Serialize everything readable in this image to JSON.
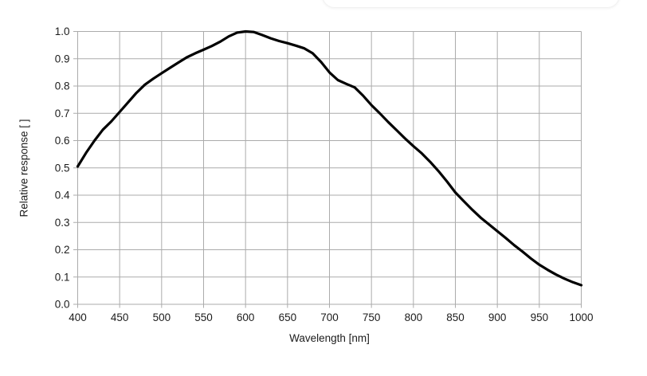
{
  "chart_data": {
    "type": "line",
    "title": "",
    "xlabel": "Wavelength [nm]",
    "ylabel": "Relative response [ ]",
    "xlim": [
      400,
      1000
    ],
    "ylim": [
      0.0,
      1.0
    ],
    "x_ticks": [
      400,
      450,
      500,
      550,
      600,
      650,
      700,
      750,
      800,
      850,
      900,
      950,
      1000
    ],
    "y_ticks": [
      0.0,
      0.1,
      0.2,
      0.3,
      0.4,
      0.5,
      0.6,
      0.7,
      0.8,
      0.9,
      1.0
    ],
    "y_tick_labels": [
      "0.0",
      "0.1",
      "0.2",
      "0.3",
      "0.4",
      "0.5",
      "0.6",
      "0.7",
      "0.8",
      "0.9",
      "1.0"
    ],
    "grid": true,
    "legend": "none",
    "colors": {
      "line": "#000000",
      "grid": "#ababab",
      "text": "#1c1c1c"
    },
    "series": [
      {
        "name": "Relative response",
        "x": [
          400,
          410,
          420,
          430,
          440,
          450,
          460,
          470,
          480,
          490,
          500,
          510,
          520,
          530,
          540,
          550,
          560,
          570,
          580,
          590,
          600,
          610,
          620,
          630,
          640,
          650,
          660,
          670,
          680,
          690,
          700,
          710,
          720,
          730,
          740,
          750,
          760,
          770,
          780,
          790,
          800,
          810,
          820,
          830,
          840,
          850,
          860,
          870,
          880,
          890,
          900,
          910,
          920,
          930,
          940,
          950,
          960,
          970,
          980,
          990,
          1000
        ],
        "y": [
          0.505,
          0.555,
          0.6,
          0.64,
          0.67,
          0.705,
          0.74,
          0.775,
          0.805,
          0.827,
          0.847,
          0.867,
          0.886,
          0.905,
          0.92,
          0.933,
          0.947,
          0.963,
          0.982,
          0.996,
          1.0,
          0.998,
          0.987,
          0.975,
          0.965,
          0.957,
          0.948,
          0.938,
          0.92,
          0.888,
          0.85,
          0.822,
          0.808,
          0.795,
          0.765,
          0.73,
          0.7,
          0.668,
          0.638,
          0.608,
          0.58,
          0.553,
          0.522,
          0.488,
          0.45,
          0.41,
          0.378,
          0.347,
          0.318,
          0.293,
          0.268,
          0.243,
          0.217,
          0.193,
          0.168,
          0.145,
          0.126,
          0.109,
          0.094,
          0.081,
          0.07
        ]
      }
    ]
  }
}
